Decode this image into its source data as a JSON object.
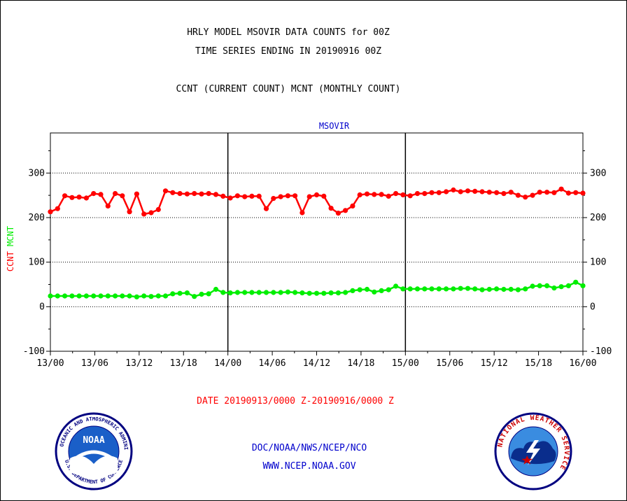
{
  "header": {
    "title_line1": "HRLY MODEL MSOVIR DATA COUNTS for 00Z",
    "title_line2": "TIME SERIES ENDING IN 20190916 00Z",
    "legend_line": "CCNT (CURRENT COUNT) MCNT (MONTHLY COUNT)"
  },
  "footer": {
    "date_range": "DATE 20190913/0000 Z-20190916/0000 Z",
    "org": "DOC/NOAA/NWS/NCEP/NCO",
    "url": "WWW.NCEP.NOAA.GOV"
  },
  "logos": {
    "left": {
      "inner": "NOAA",
      "ring_top": "NATIONAL OCEANIC AND ATMOSPHERIC ADMINISTRATION",
      "ring_bottom": "U.S. DEPARTMENT OF COMMERCE"
    },
    "right": {
      "ring": "NATIONAL WEATHER SERVICE"
    }
  },
  "colors": {
    "ccnt": "#ff0000",
    "mcnt": "#00ee00",
    "title": "#000000",
    "plot_label": "#0000cc",
    "footer_blue": "#0000cc",
    "footer_red": "#ff0000"
  },
  "chart_data": {
    "type": "line",
    "title": "MSOVIR",
    "ylabel_ccnt": "CCNT",
    "ylabel_mcnt": "MCNT",
    "ylim": [
      -100,
      390
    ],
    "yticks": [
      -100,
      0,
      100,
      200,
      300
    ],
    "ytick_labels": [
      "-100",
      "0",
      "100",
      "200",
      "300"
    ],
    "xlim": [
      0,
      72
    ],
    "xticks": [
      0,
      6,
      12,
      18,
      24,
      30,
      36,
      42,
      48,
      54,
      60,
      66,
      72
    ],
    "xtick_labels": [
      "13/00",
      "13/06",
      "13/12",
      "13/18",
      "14/00",
      "14/06",
      "14/12",
      "14/18",
      "15/00",
      "15/06",
      "15/12",
      "15/18",
      "16/00"
    ],
    "day_dividers": [
      24,
      48
    ],
    "grid_y": [
      0,
      100,
      200,
      300
    ],
    "series": [
      {
        "name": "CCNT",
        "values": [
          213,
          220,
          249,
          245,
          246,
          244,
          254,
          252,
          226,
          254,
          249,
          213,
          253,
          208,
          211,
          218,
          260,
          256,
          254,
          253,
          254,
          253,
          254,
          252,
          248,
          244,
          249,
          247,
          248,
          248,
          220,
          243,
          247,
          249,
          249,
          211,
          247,
          251,
          248,
          221,
          210,
          216,
          226,
          251,
          253,
          252,
          252,
          248,
          254,
          251,
          249,
          254,
          254,
          256,
          256,
          258,
          262,
          258,
          260,
          259,
          258,
          257,
          256,
          254,
          257,
          250,
          246,
          250,
          257,
          257,
          256,
          264,
          255,
          256,
          255
        ]
      },
      {
        "name": "MCNT",
        "values": [
          24,
          24,
          24,
          24,
          24,
          24,
          24,
          24,
          24,
          24,
          24,
          24,
          22,
          24,
          23,
          24,
          24,
          29,
          30,
          31,
          23,
          28,
          29,
          39,
          32,
          31,
          32,
          32,
          32,
          32,
          32,
          32,
          32,
          33,
          32,
          31,
          30,
          30,
          30,
          31,
          31,
          32,
          36,
          38,
          39,
          33,
          36,
          38,
          46,
          40,
          40,
          40,
          40,
          40,
          40,
          40,
          40,
          41,
          41,
          40,
          38,
          39,
          40,
          39,
          39,
          38,
          40,
          46,
          47,
          47,
          42,
          45,
          47,
          55,
          47
        ]
      }
    ]
  }
}
